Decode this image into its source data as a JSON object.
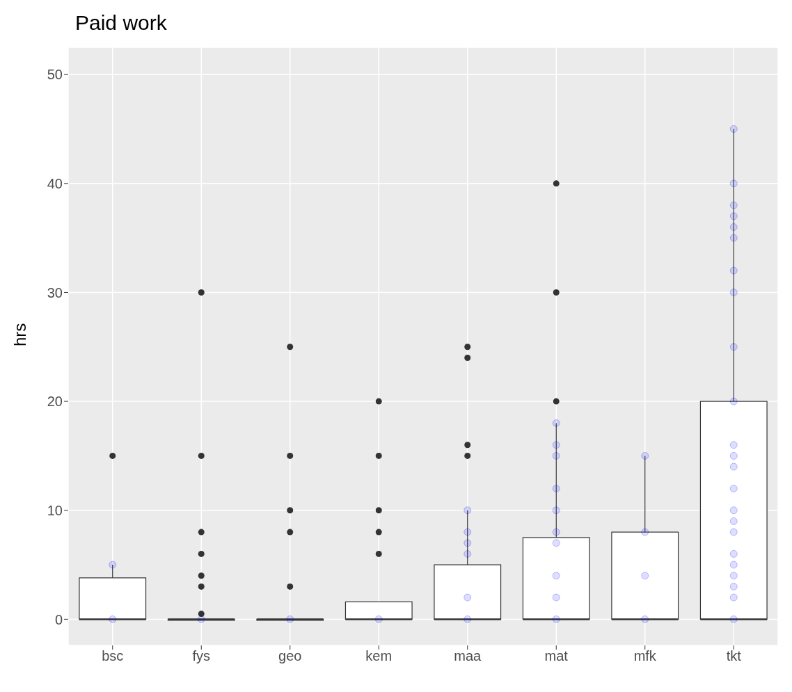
{
  "chart_data": {
    "type": "box",
    "title": "Paid work",
    "ylabel": "hrs",
    "categories": [
      "bsc",
      "fys",
      "geo",
      "kem",
      "maa",
      "mat",
      "mfk",
      "tkt"
    ],
    "boxes": [
      {
        "low": 0,
        "q1": 0,
        "median": 0,
        "q3": 3.8,
        "high": 5,
        "outliers": [
          15
        ]
      },
      {
        "low": 0,
        "q1": 0,
        "median": 0,
        "q3": 0,
        "high": 0,
        "outliers": [
          30,
          15,
          8,
          6,
          4,
          3,
          0.5
        ]
      },
      {
        "low": 0,
        "q1": 0,
        "median": 0,
        "q3": 0,
        "high": 0,
        "outliers": [
          25,
          15,
          10,
          8,
          3
        ]
      },
      {
        "low": 0,
        "q1": 0,
        "median": 0,
        "q3": 1.6,
        "high": 1.6,
        "outliers": [
          20,
          15,
          10,
          8,
          6
        ]
      },
      {
        "low": 0,
        "q1": 0,
        "median": 0,
        "q3": 5,
        "high": 10,
        "outliers": [
          25,
          24,
          16,
          15
        ]
      },
      {
        "low": 0,
        "q1": 0,
        "median": 0,
        "q3": 7.5,
        "high": 18,
        "outliers": [
          40,
          30,
          20
        ]
      },
      {
        "low": 0,
        "q1": 0,
        "median": 0,
        "q3": 8,
        "high": 15
      },
      {
        "low": 0,
        "q1": 0,
        "median": 0,
        "q3": 20,
        "high": 45
      }
    ],
    "series": [
      {
        "type": "scatter",
        "color": "#0000ff",
        "x": [
          "bsc",
          "bsc",
          "fys",
          "geo",
          "kem",
          "maa",
          "maa",
          "maa",
          "maa",
          "maa",
          "maa",
          "mat",
          "mat",
          "mat",
          "mat",
          "mat",
          "mat",
          "mat",
          "mat",
          "mat",
          "mat",
          "mfk",
          "mfk",
          "mfk",
          "mfk",
          "tkt",
          "tkt",
          "tkt",
          "tkt",
          "tkt",
          "tkt",
          "tkt",
          "tkt",
          "tkt",
          "tkt",
          "tkt",
          "tkt",
          "tkt",
          "tkt",
          "tkt",
          "tkt",
          "tkt",
          "tkt",
          "tkt",
          "tkt",
          "tkt",
          "tkt",
          "tkt"
        ],
        "values": [
          5,
          0,
          0,
          0,
          0,
          10,
          8,
          7,
          6,
          2,
          0,
          18,
          16,
          15,
          12,
          10,
          8,
          7,
          4,
          2,
          0,
          15,
          8,
          4,
          0,
          45,
          40,
          38,
          37,
          36,
          35,
          32,
          30,
          25,
          20,
          16,
          15,
          14,
          12,
          10,
          9,
          8,
          6,
          5,
          4,
          3,
          2,
          0
        ]
      }
    ],
    "ylim": [
      -2.4,
      52.5
    ],
    "yticks": [
      0,
      10,
      20,
      30,
      40,
      50
    ],
    "grid": true
  }
}
